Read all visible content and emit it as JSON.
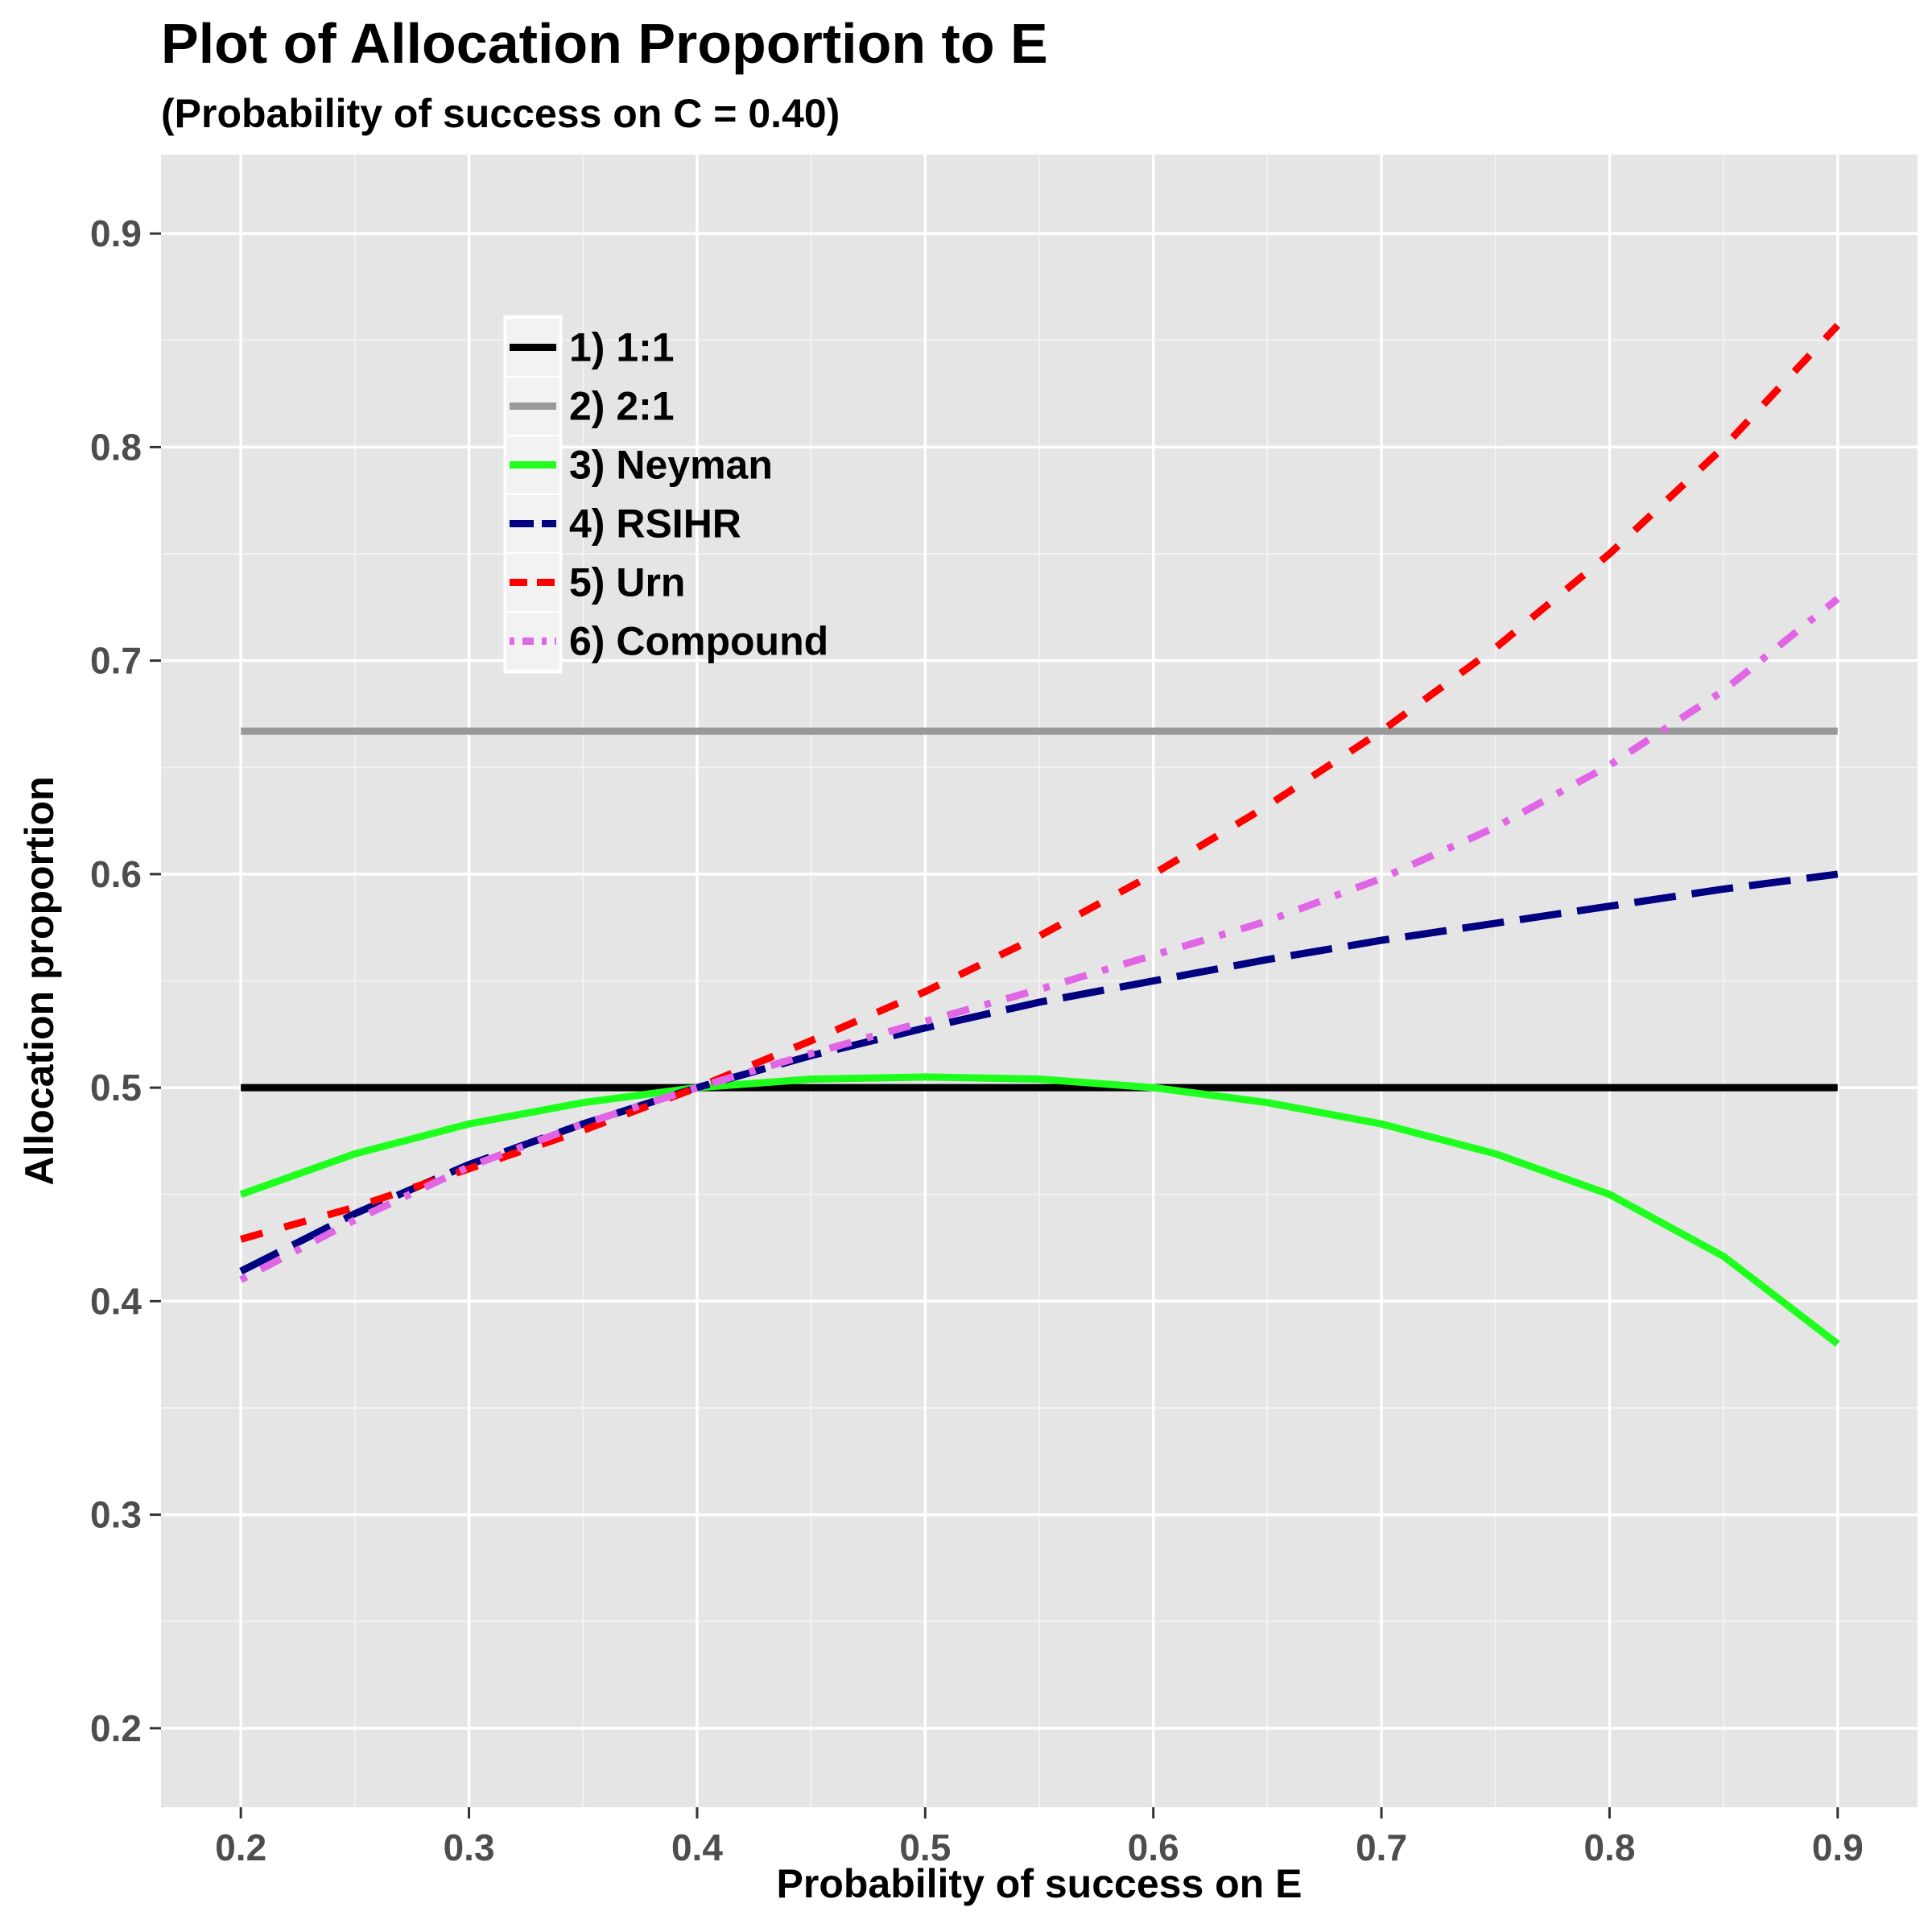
{
  "chart_data": {
    "type": "line",
    "title": "Plot of Allocation Proportion to E",
    "subtitle": "(Probability of success on C = 0.40)",
    "xlabel": "Probability of success on E",
    "ylabel": "Allocation proportion",
    "xlim": [
      0.165,
      0.935
    ],
    "ylim": [
      0.163,
      0.937
    ],
    "x_ticks": [
      0.2,
      0.3,
      0.4,
      0.5,
      0.6,
      0.7,
      0.8,
      0.9
    ],
    "y_ticks": [
      0.2,
      0.3,
      0.4,
      0.5,
      0.6,
      0.7,
      0.8,
      0.9
    ],
    "x_tick_labels": [
      "0.2",
      "0.3",
      "0.4",
      "0.5",
      "0.6",
      "0.7",
      "0.8",
      "0.9"
    ],
    "y_tick_labels": [
      "0.2",
      "0.3",
      "0.4",
      "0.5",
      "0.6",
      "0.7",
      "0.8",
      "0.9"
    ],
    "grid": true,
    "legend_position": "inside-top-left",
    "x": [
      0.2,
      0.25,
      0.3,
      0.35,
      0.4,
      0.45,
      0.5,
      0.55,
      0.6,
      0.65,
      0.7,
      0.75,
      0.8,
      0.85,
      0.9
    ],
    "series": [
      {
        "name": "1) 1:1",
        "color": "#000000",
        "dash": "solid",
        "values": [
          0.5,
          0.5,
          0.5,
          0.5,
          0.5,
          0.5,
          0.5,
          0.5,
          0.5,
          0.5,
          0.5,
          0.5,
          0.5,
          0.5,
          0.5
        ]
      },
      {
        "name": "2) 2:1",
        "color": "#999999",
        "dash": "solid",
        "values": [
          0.667,
          0.667,
          0.667,
          0.667,
          0.667,
          0.667,
          0.667,
          0.667,
          0.667,
          0.667,
          0.667,
          0.667,
          0.667,
          0.667,
          0.667
        ]
      },
      {
        "name": "3) Neyman",
        "color": "#1EFF1E",
        "dash": "solid",
        "values": [
          0.45,
          0.469,
          0.483,
          0.493,
          0.5,
          0.504,
          0.505,
          0.504,
          0.5,
          0.493,
          0.483,
          0.469,
          0.45,
          0.421,
          0.38
        ]
      },
      {
        "name": "4) RSIHR",
        "color": "#000080",
        "dash": "longdash",
        "values": [
          0.414,
          0.441,
          0.464,
          0.483,
          0.5,
          0.515,
          0.528,
          0.54,
          0.55,
          0.56,
          0.569,
          0.577,
          0.585,
          0.593,
          0.6
        ]
      },
      {
        "name": "5) Urn",
        "color": "#FF0000",
        "dash": "dashed",
        "values": [
          0.429,
          0.444,
          0.462,
          0.48,
          0.5,
          0.522,
          0.545,
          0.571,
          0.6,
          0.632,
          0.667,
          0.706,
          0.75,
          0.8,
          0.857
        ]
      },
      {
        "name": "6) Compound",
        "color": "#E066E6",
        "dash": "dotdash",
        "values": [
          0.41,
          0.438,
          0.463,
          0.483,
          0.5,
          0.516,
          0.531,
          0.546,
          0.562,
          0.578,
          0.598,
          0.622,
          0.651,
          0.686,
          0.729
        ]
      }
    ]
  }
}
